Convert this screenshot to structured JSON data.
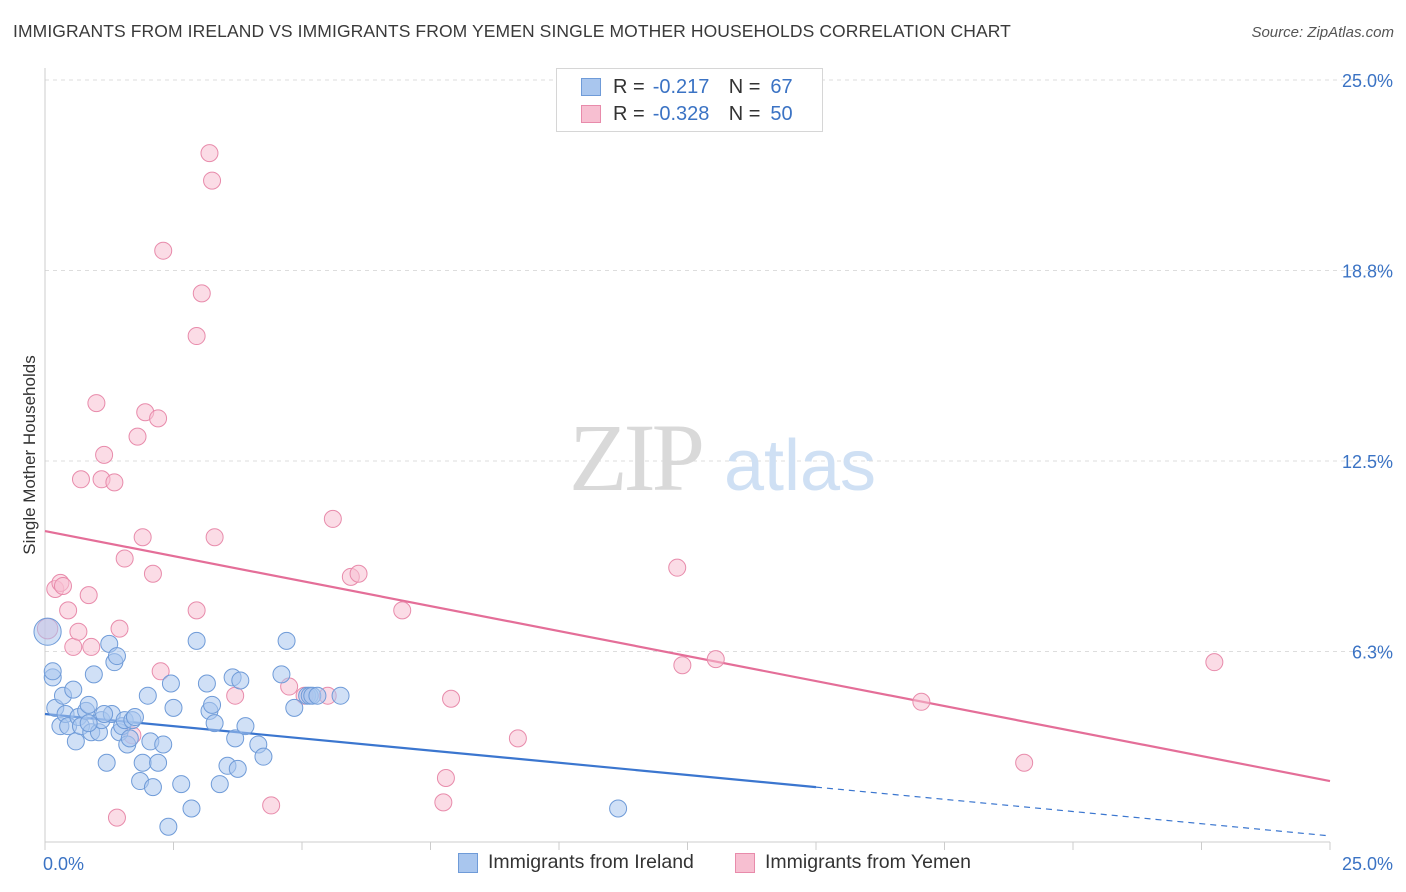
{
  "title": "IMMIGRANTS FROM IRELAND VS IMMIGRANTS FROM YEMEN SINGLE MOTHER HOUSEHOLDS CORRELATION CHART",
  "source": "Source: ZipAtlas.com",
  "watermark": {
    "zip": "ZIP",
    "atlas": "atlas"
  },
  "legend": {
    "r_label": "R =",
    "n_label": "N =",
    "ireland": {
      "r": "-0.217",
      "n": "67"
    },
    "yemen": {
      "r": "-0.328",
      "n": "50"
    }
  },
  "bottom_legend": {
    "ireland": "Immigrants from Ireland",
    "yemen": "Immigrants from Yemen"
  },
  "colors": {
    "ireland_fill": "#a9c6ee",
    "ireland_stroke": "#6f9bd8",
    "ireland_line": "#3b76cf",
    "yemen_fill": "#f7bfd1",
    "yemen_stroke": "#e88bab",
    "yemen_line": "#e46e98",
    "axis_label": "#3b73c4",
    "grid": "#dddddd"
  },
  "chart_data": {
    "type": "scatter",
    "title": "IMMIGRANTS FROM IRELAND VS IMMIGRANTS FROM YEMEN SINGLE MOTHER HOUSEHOLDS CORRELATION CHART",
    "xlabel": "",
    "ylabel": "Single Mother Households",
    "xlim": [
      0,
      25
    ],
    "ylim": [
      0,
      25
    ],
    "x_tick_labels": [
      "0.0%",
      "25.0%"
    ],
    "y_ticks": [
      {
        "value": 6.25,
        "label": "6.3%"
      },
      {
        "value": 12.5,
        "label": "12.5%"
      },
      {
        "value": 18.75,
        "label": "18.8%"
      },
      {
        "value": 25.0,
        "label": "25.0%"
      }
    ],
    "series": [
      {
        "name": "Immigrants from Ireland",
        "color": "#a9c6ee",
        "trend": {
          "x0": 0,
          "y0": 4.2,
          "x1": 15,
          "y1": 1.8,
          "dashed_to_x": 25,
          "dashed_to_y": 0.2
        },
        "points": [
          [
            0.05,
            6.9,
            1.6
          ],
          [
            0.15,
            5.4,
            1
          ],
          [
            0.15,
            5.6,
            1
          ],
          [
            0.2,
            4.4,
            1
          ],
          [
            0.3,
            3.8,
            1
          ],
          [
            0.35,
            4.8,
            1
          ],
          [
            0.4,
            4.2,
            1
          ],
          [
            0.45,
            3.8,
            1
          ],
          [
            0.55,
            5.0,
            1
          ],
          [
            0.6,
            3.3,
            1
          ],
          [
            0.65,
            4.1,
            1
          ],
          [
            0.7,
            3.8,
            1
          ],
          [
            0.8,
            4.3,
            1
          ],
          [
            0.85,
            4.5,
            1
          ],
          [
            0.9,
            3.6,
            1
          ],
          [
            0.95,
            5.5,
            1
          ],
          [
            1.05,
            3.6,
            1
          ],
          [
            1.1,
            4.0,
            1
          ],
          [
            1.2,
            2.6,
            1
          ],
          [
            1.25,
            6.5,
            1
          ],
          [
            1.3,
            4.2,
            1
          ],
          [
            1.35,
            5.9,
            1
          ],
          [
            1.4,
            6.1,
            1
          ],
          [
            1.45,
            3.6,
            1
          ],
          [
            1.5,
            3.8,
            1
          ],
          [
            1.55,
            4.0,
            1
          ],
          [
            1.6,
            3.2,
            1
          ],
          [
            1.65,
            3.4,
            1
          ],
          [
            1.7,
            4.0,
            1
          ],
          [
            1.75,
            4.1,
            1
          ],
          [
            1.85,
            2.0,
            1
          ],
          [
            1.9,
            2.6,
            1
          ],
          [
            2.0,
            4.8,
            1
          ],
          [
            2.05,
            3.3,
            1
          ],
          [
            2.1,
            1.8,
            1
          ],
          [
            2.2,
            2.6,
            1
          ],
          [
            2.3,
            3.2,
            1
          ],
          [
            2.4,
            0.5,
            1
          ],
          [
            2.45,
            5.2,
            1
          ],
          [
            2.5,
            4.4,
            1
          ],
          [
            2.65,
            1.9,
            1
          ],
          [
            2.85,
            1.1,
            1
          ],
          [
            2.95,
            6.6,
            1
          ],
          [
            3.15,
            5.2,
            1
          ],
          [
            3.2,
            4.3,
            1
          ],
          [
            3.25,
            4.5,
            1
          ],
          [
            3.3,
            3.9,
            1
          ],
          [
            3.4,
            1.9,
            1
          ],
          [
            3.55,
            2.5,
            1
          ],
          [
            3.65,
            5.4,
            1
          ],
          [
            3.7,
            3.4,
            1
          ],
          [
            3.75,
            2.4,
            1
          ],
          [
            3.8,
            5.3,
            1
          ],
          [
            3.9,
            3.8,
            1
          ],
          [
            4.15,
            3.2,
            1
          ],
          [
            4.25,
            2.8,
            1
          ],
          [
            4.6,
            5.5,
            1
          ],
          [
            4.7,
            6.6,
            1
          ],
          [
            4.85,
            4.4,
            1
          ],
          [
            5.1,
            4.8,
            1
          ],
          [
            5.15,
            4.8,
            1
          ],
          [
            5.2,
            4.8,
            1
          ],
          [
            5.3,
            4.8,
            1
          ],
          [
            5.75,
            4.8,
            1
          ],
          [
            11.15,
            1.1,
            1
          ],
          [
            0.85,
            3.9,
            1
          ],
          [
            1.15,
            4.2,
            1
          ]
        ]
      },
      {
        "name": "Immigrants from Yemen",
        "color": "#f7bfd1",
        "trend": {
          "x0": 0,
          "y0": 10.2,
          "x1": 25,
          "y1": 2.0
        },
        "points": [
          [
            0.05,
            7.0,
            1.2
          ],
          [
            0.2,
            8.3,
            1
          ],
          [
            0.3,
            8.5,
            1
          ],
          [
            0.35,
            8.4,
            1
          ],
          [
            0.45,
            7.6,
            1
          ],
          [
            0.55,
            6.4,
            1
          ],
          [
            0.65,
            6.9,
            1
          ],
          [
            0.7,
            11.9,
            1
          ],
          [
            0.85,
            8.1,
            1
          ],
          [
            0.9,
            6.4,
            1
          ],
          [
            1.0,
            14.4,
            1
          ],
          [
            1.1,
            11.9,
            1
          ],
          [
            1.15,
            12.7,
            1
          ],
          [
            1.35,
            11.8,
            1
          ],
          [
            1.4,
            0.8,
            1
          ],
          [
            1.45,
            7.0,
            1
          ],
          [
            1.55,
            9.3,
            1
          ],
          [
            1.7,
            3.5,
            1
          ],
          [
            1.8,
            13.3,
            1
          ],
          [
            1.9,
            10.0,
            1
          ],
          [
            1.95,
            14.1,
            1
          ],
          [
            2.1,
            8.8,
            1
          ],
          [
            2.2,
            13.9,
            1
          ],
          [
            2.25,
            5.6,
            1
          ],
          [
            2.3,
            19.4,
            1
          ],
          [
            2.95,
            16.6,
            1
          ],
          [
            2.95,
            7.6,
            1
          ],
          [
            3.05,
            18.0,
            1
          ],
          [
            3.2,
            22.6,
            1
          ],
          [
            3.25,
            21.7,
            1
          ],
          [
            3.3,
            10.0,
            1
          ],
          [
            3.7,
            4.8,
            1
          ],
          [
            4.4,
            1.2,
            1
          ],
          [
            4.75,
            5.1,
            1
          ],
          [
            5.05,
            4.8,
            1
          ],
          [
            5.6,
            10.6,
            1
          ],
          [
            5.95,
            8.7,
            1
          ],
          [
            6.1,
            8.8,
            1
          ],
          [
            6.95,
            7.6,
            1
          ],
          [
            7.75,
            1.3,
            1
          ],
          [
            7.8,
            2.1,
            1
          ],
          [
            7.9,
            4.7,
            1
          ],
          [
            9.2,
            3.4,
            1
          ],
          [
            12.3,
            9.0,
            1
          ],
          [
            12.4,
            5.8,
            1
          ],
          [
            13.05,
            6.0,
            1
          ],
          [
            17.05,
            4.6,
            1
          ],
          [
            19.05,
            2.6,
            1
          ],
          [
            22.75,
            5.9,
            1
          ],
          [
            5.5,
            4.8,
            1
          ]
        ]
      }
    ]
  }
}
